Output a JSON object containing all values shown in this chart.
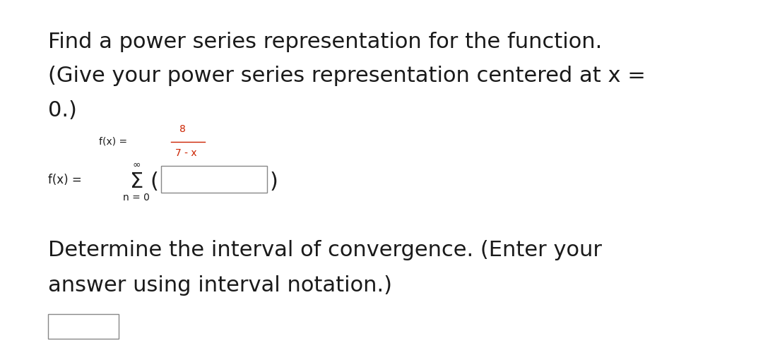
{
  "bg_color": "#ffffff",
  "text_color": "#1a1a1a",
  "title_line1": "Find a power series representation for the function.",
  "title_line2": "(Give your power series representation centered at x =",
  "title_line3": "0.)",
  "numerator": "8",
  "denominator": "7 - x",
  "bottom_line1": "Determine the interval of convergence. (Enter your",
  "bottom_line2": "answer using interval notation.)",
  "fraction_color": "#cc2200",
  "main_text_fontsize": 22,
  "small_text_fontsize": 10,
  "series_text_fontsize": 12
}
